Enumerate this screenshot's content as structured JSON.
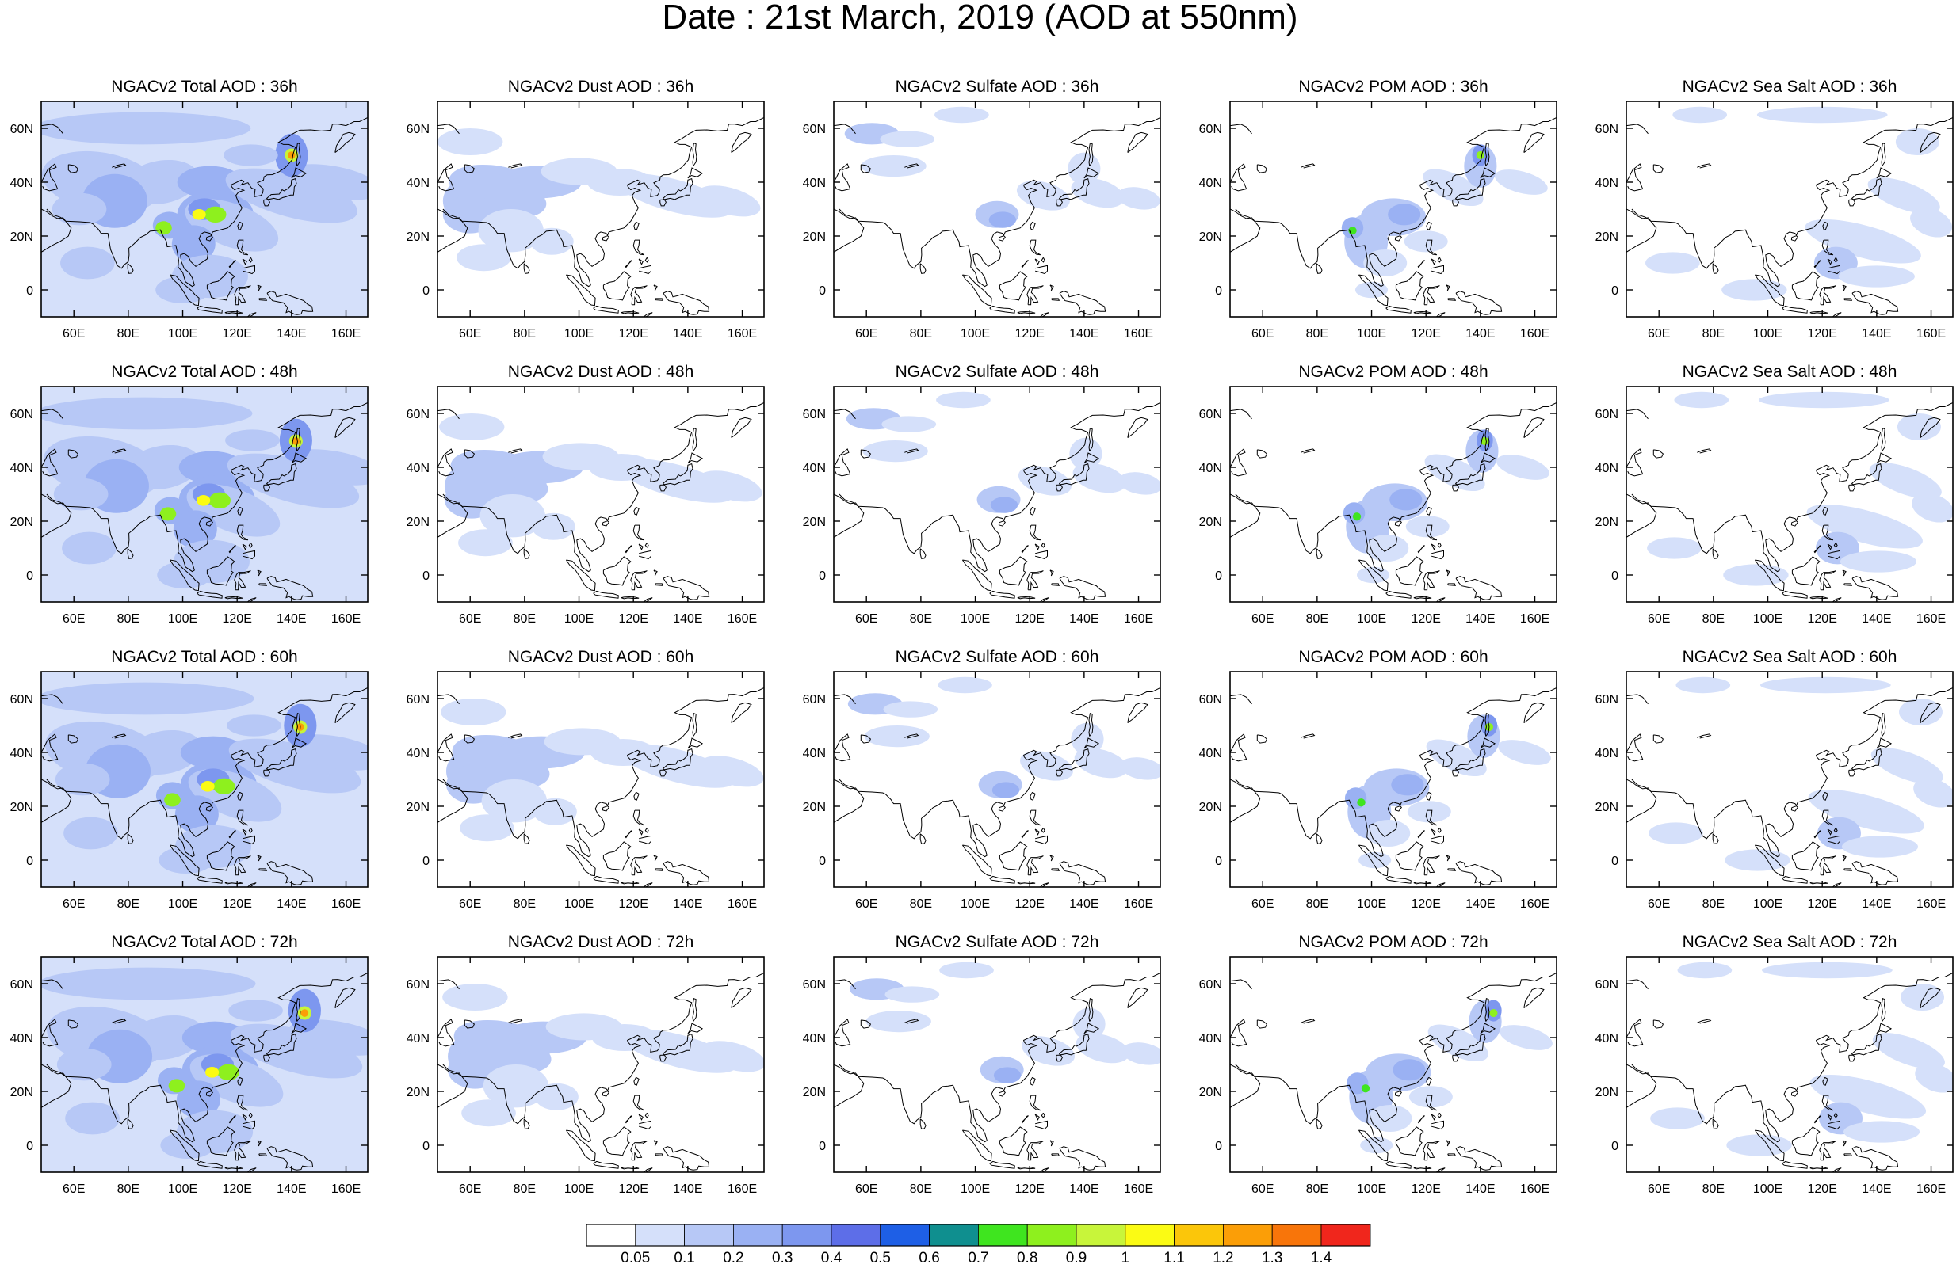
{
  "figure_title": "Date : 21st March, 2019 (AOD at 550nm)",
  "panel_titles": [
    [
      "NGACv2 Total AOD : 36h",
      "NGACv2 Dust AOD : 36h",
      "NGACv2 Sulfate AOD : 36h",
      "NGACv2 POM AOD : 36h",
      "NGACv2 Sea Salt AOD : 36h"
    ],
    [
      "NGACv2 Total AOD : 48h",
      "NGACv2 Dust AOD : 48h",
      "NGACv2 Sulfate AOD : 48h",
      "NGACv2 POM AOD : 48h",
      "NGACv2 Sea Salt AOD : 48h"
    ],
    [
      "NGACv2 Total AOD : 60h",
      "NGACv2 Dust AOD : 60h",
      "NGACv2 Sulfate AOD : 60h",
      "NGACv2 POM AOD : 60h",
      "NGACv2 Sea Salt AOD : 60h"
    ],
    [
      "NGACv2 Total AOD : 72h",
      "NGACv2 Dust AOD : 72h",
      "NGACv2 Sulfate AOD : 72h",
      "NGACv2 POM AOD : 72h",
      "NGACv2 Sea Salt  AOD : 72h"
    ]
  ],
  "lon_ticks": [
    "60E",
    "80E",
    "100E",
    "120E",
    "140E",
    "160E"
  ],
  "lat_ticks": [
    "60N",
    "40N",
    "20N",
    "0"
  ],
  "map_extent": {
    "lon": [
      48,
      168
    ],
    "lat": [
      -10,
      70
    ]
  },
  "colorbar": {
    "labels": [
      "0.05",
      "0.1",
      "0.2",
      "0.3",
      "0.4",
      "0.5",
      "0.6",
      "0.7",
      "0.8",
      "0.9",
      "1",
      "1.1",
      "1.2",
      "1.3",
      "1.4"
    ],
    "colors": [
      "#ffffff",
      "#d5e0fa",
      "#b7c8f6",
      "#9ab1f3",
      "#7d97ef",
      "#5d6ee8",
      "#1e5fe6",
      "#0f8f8f",
      "#3fe51f",
      "#8ef01e",
      "#c8f53a",
      "#fbfb14",
      "#fbc60a",
      "#fb9e07",
      "#f8750a",
      "#f0261c"
    ]
  },
  "features": [
    [
      "Hotspot near 50N 140E; high loading over southern China (~110E 28N) and near 22N 93E; broad plume over east Asia and western Pacific",
      "Moderate dust over the Middle East, Central Asia, Tibet and northern China; plume extending east to ~165E",
      "Low sulfate; maximum over southern China (~108E 27N) and patches over central Asia and northeast Asia",
      "Hotspot near 50N 140E; loading over southern China and Indochina (~22N 93E); plume toward northwest Pacific",
      "Sea salt over tropical western Pacific and high-latitude Pacific; patches around Maritime Continent"
    ],
    [
      "Hotspot near 50N 142E; high loading over southern China (~110E 28N) and Indochina; broad plume over western Pacific",
      "Dust over Middle East, Central Asia, Tibet and northern China; plume extending to ~165E 28N",
      "Sulfate plume over central Asia (~60E 58N) and southern China (~108E 27N)",
      "Hotspot near 50N 142E; loading over southern China and Indochina",
      "Sea salt over western Pacific and patches in the tropics"
    ],
    [
      "Hotspot near 50N 144E; high loading over southern China (~110E 28N) and Indochina (~22N 93E); plume over western Pacific",
      "Dust over Middle East, Central Asia, Tibet and northern China; plume extending east",
      "Sulfate over central Asia (~60E 58N) and southern China; plume across northwest Pacific",
      "Hotspot near 50N 144E; loading over southern China and Indochina (~22N 93E)",
      "Sea salt over western Pacific (~10-40N, 120-168E)"
    ],
    [
      "Hotspot near 48N 146E; high loading over southern China (~110E 28N) and Indochina (~22N 94E); broad plume over east Asia",
      "Dust over Middle East, Central Asia, Tibet and northern China; plume extending to ~165E",
      "Sulfate over central Asia (~60E 58N), southern China (~108E 26N) and northwest Pacific",
      "Hotspot near 48N 146E; loading over southern China and Indochina",
      "Sea salt over western Pacific and Maritime Continent"
    ]
  ]
}
